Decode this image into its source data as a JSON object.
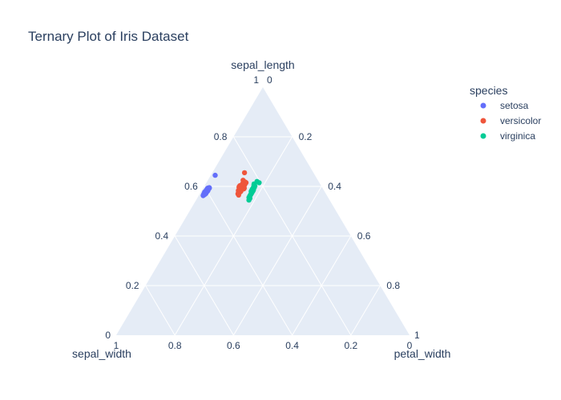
{
  "chart_data": {
    "type": "scatter",
    "subtype": "ternary",
    "title": "Ternary Plot of Iris Dataset",
    "axes": {
      "a": {
        "label": "sepal_length",
        "ticks": [
          0.2,
          0.4,
          0.6,
          0.8
        ],
        "range": [
          0,
          1
        ]
      },
      "b": {
        "label": "sepal_width",
        "ticks": [
          0.2,
          0.4,
          0.6,
          0.8
        ],
        "range": [
          0,
          1
        ]
      },
      "c": {
        "label": "petal_width",
        "ticks": [
          0.2,
          0.4,
          0.6,
          0.8
        ],
        "range": [
          0,
          1
        ]
      }
    },
    "corner_labels": {
      "top_a": "1",
      "top_c": "0",
      "left_b": "1",
      "left_a": "0",
      "right_c": "1",
      "right_b": "0"
    },
    "grid": true,
    "background_color": "#e5ecf6",
    "legend": {
      "title": "species",
      "placement": "top-right"
    },
    "series": [
      {
        "name": "setosa",
        "color": "#636efa",
        "points": [
          [
            0.584,
            0.401,
            0.015
          ],
          [
            0.587,
            0.395,
            0.018
          ],
          [
            0.577,
            0.41,
            0.013
          ],
          [
            0.58,
            0.4,
            0.02
          ],
          [
            0.575,
            0.405,
            0.02
          ],
          [
            0.59,
            0.39,
            0.02
          ],
          [
            0.57,
            0.415,
            0.015
          ],
          [
            0.593,
            0.386,
            0.021
          ],
          [
            0.573,
            0.412,
            0.015
          ],
          [
            0.582,
            0.398,
            0.02
          ],
          [
            0.568,
            0.418,
            0.014
          ],
          [
            0.595,
            0.385,
            0.02
          ],
          [
            0.578,
            0.404,
            0.018
          ],
          [
            0.583,
            0.396,
            0.021
          ],
          [
            0.571,
            0.409,
            0.02
          ],
          [
            0.588,
            0.392,
            0.02
          ],
          [
            0.565,
            0.42,
            0.015
          ],
          [
            0.585,
            0.4,
            0.015
          ],
          [
            0.576,
            0.404,
            0.02
          ],
          [
            0.592,
            0.393,
            0.015
          ],
          [
            0.574,
            0.408,
            0.018
          ],
          [
            0.579,
            0.403,
            0.018
          ],
          [
            0.586,
            0.397,
            0.017
          ],
          [
            0.569,
            0.416,
            0.015
          ],
          [
            0.581,
            0.402,
            0.017
          ],
          [
            0.572,
            0.411,
            0.017
          ],
          [
            0.589,
            0.394,
            0.017
          ],
          [
            0.563,
            0.422,
            0.015
          ],
          [
            0.584,
            0.397,
            0.019
          ],
          [
            0.594,
            0.389,
            0.017
          ],
          [
            0.567,
            0.415,
            0.018
          ],
          [
            0.578,
            0.407,
            0.015
          ],
          [
            0.573,
            0.41,
            0.017
          ],
          [
            0.645,
            0.34,
            0.015
          ],
          [
            0.591,
            0.392,
            0.017
          ],
          [
            0.58,
            0.405,
            0.015
          ]
        ]
      },
      {
        "name": "versicolor",
        "color": "#ef553b",
        "points": [
          [
            0.6,
            0.27,
            0.13
          ],
          [
            0.59,
            0.28,
            0.13
          ],
          [
            0.61,
            0.26,
            0.13
          ],
          [
            0.58,
            0.285,
            0.135
          ],
          [
            0.62,
            0.255,
            0.125
          ],
          [
            0.595,
            0.275,
            0.13
          ],
          [
            0.585,
            0.29,
            0.125
          ],
          [
            0.605,
            0.265,
            0.13
          ],
          [
            0.575,
            0.295,
            0.13
          ],
          [
            0.615,
            0.25,
            0.135
          ],
          [
            0.6,
            0.28,
            0.12
          ],
          [
            0.59,
            0.27,
            0.14
          ],
          [
            0.625,
            0.255,
            0.12
          ],
          [
            0.57,
            0.3,
            0.13
          ],
          [
            0.598,
            0.272,
            0.13
          ],
          [
            0.608,
            0.262,
            0.13
          ],
          [
            0.588,
            0.282,
            0.13
          ],
          [
            0.578,
            0.288,
            0.134
          ],
          [
            0.612,
            0.258,
            0.13
          ],
          [
            0.596,
            0.268,
            0.136
          ],
          [
            0.583,
            0.292,
            0.125
          ],
          [
            0.603,
            0.277,
            0.12
          ],
          [
            0.593,
            0.267,
            0.14
          ],
          [
            0.618,
            0.252,
            0.13
          ],
          [
            0.573,
            0.297,
            0.13
          ],
          [
            0.655,
            0.235,
            0.11
          ],
          [
            0.587,
            0.278,
            0.135
          ],
          [
            0.607,
            0.258,
            0.135
          ],
          [
            0.597,
            0.283,
            0.12
          ],
          [
            0.581,
            0.289,
            0.13
          ],
          [
            0.565,
            0.3,
            0.135
          ],
          [
            0.611,
            0.264,
            0.125
          ]
        ]
      },
      {
        "name": "virginica",
        "color": "#00cc96",
        "points": [
          [
            0.59,
            0.24,
            0.17
          ],
          [
            0.58,
            0.25,
            0.17
          ],
          [
            0.6,
            0.23,
            0.17
          ],
          [
            0.57,
            0.255,
            0.175
          ],
          [
            0.56,
            0.265,
            0.175
          ],
          [
            0.61,
            0.225,
            0.165
          ],
          [
            0.595,
            0.235,
            0.17
          ],
          [
            0.585,
            0.245,
            0.17
          ],
          [
            0.575,
            0.25,
            0.175
          ],
          [
            0.565,
            0.26,
            0.175
          ],
          [
            0.605,
            0.228,
            0.167
          ],
          [
            0.555,
            0.27,
            0.175
          ],
          [
            0.62,
            0.21,
            0.17
          ],
          [
            0.592,
            0.238,
            0.17
          ],
          [
            0.582,
            0.243,
            0.175
          ],
          [
            0.572,
            0.253,
            0.175
          ],
          [
            0.562,
            0.263,
            0.175
          ],
          [
            0.552,
            0.268,
            0.18
          ],
          [
            0.598,
            0.232,
            0.17
          ],
          [
            0.588,
            0.242,
            0.17
          ],
          [
            0.578,
            0.247,
            0.175
          ],
          [
            0.568,
            0.257,
            0.175
          ],
          [
            0.615,
            0.205,
            0.18
          ],
          [
            0.602,
            0.226,
            0.172
          ],
          [
            0.586,
            0.239,
            0.175
          ],
          [
            0.576,
            0.249,
            0.175
          ],
          [
            0.566,
            0.259,
            0.175
          ],
          [
            0.545,
            0.275,
            0.18
          ],
          [
            0.596,
            0.231,
            0.173
          ],
          [
            0.583,
            0.242,
            0.175
          ]
        ]
      }
    ]
  }
}
